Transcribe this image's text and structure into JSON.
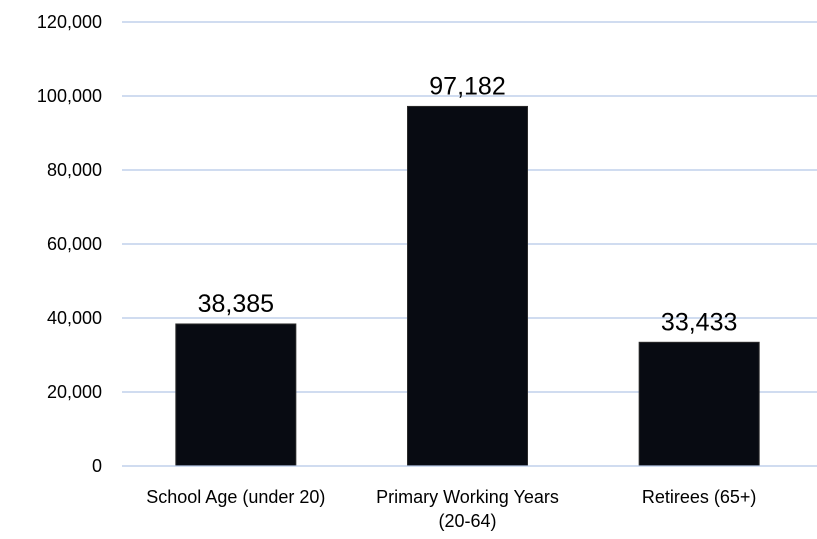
{
  "chart_data": {
    "type": "bar",
    "title": "",
    "xlabel": "",
    "ylabel": "",
    "categories": [
      [
        "School Age (under 20)"
      ],
      [
        "Primary Working Years",
        "(20-64)"
      ],
      [
        "Retirees (65+)"
      ]
    ],
    "values": [
      38385,
      97182,
      33433
    ],
    "data_labels": [
      "38,385",
      "97,182",
      "33,433"
    ],
    "ylim": [
      0,
      120000
    ],
    "yticks": [
      0,
      20000,
      40000,
      60000,
      80000,
      100000,
      120000
    ],
    "ytick_labels": [
      "0",
      "20,000",
      "40,000",
      "60,000",
      "80,000",
      "100,000",
      "120,000"
    ],
    "grid": true,
    "legend": "none",
    "colors": {
      "bar": "#080b12",
      "gridline": "#b4c7e7",
      "axis": "#b4c7e7",
      "text": "#000000"
    }
  }
}
